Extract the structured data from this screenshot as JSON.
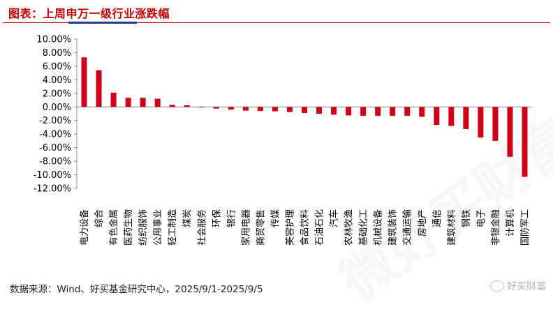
{
  "header": {
    "title": "图表：上周申万一级行业涨跌幅"
  },
  "footer": {
    "source": "数据来源：Wind、好买基金研究中心，2025/9/1-2025/9/5"
  },
  "watermark": {
    "badge": "好买财富",
    "big": "微好买财富客户使用"
  },
  "chart_data": {
    "type": "bar",
    "title": "",
    "xlabel": "",
    "ylabel": "",
    "ylim": [
      -12,
      10
    ],
    "ytick_step": 2,
    "ytick_format": "percent_2dp",
    "grid": false,
    "bar_color": "#D00019",
    "categories": [
      "电力设备",
      "综合",
      "有色金属",
      "医药生物",
      "纺织服饰",
      "公用事业",
      "轻工制造",
      "煤炭",
      "社会服务",
      "环保",
      "银行",
      "家用电器",
      "商贸零售",
      "传媒",
      "美容护理",
      "食品饮料",
      "石油石化",
      "汽车",
      "农林牧渔",
      "基础化工",
      "机械设备",
      "建筑装饰",
      "交通运输",
      "房地产",
      "通信",
      "建筑材料",
      "钢铁",
      "电子",
      "非银金融",
      "计算机",
      "国防军工"
    ],
    "values": [
      7.3,
      5.4,
      2.1,
      1.35,
      1.35,
      1.2,
      0.3,
      0.25,
      -0.05,
      -0.25,
      -0.4,
      -0.55,
      -0.6,
      -0.65,
      -0.75,
      -0.9,
      -1.0,
      -1.15,
      -1.25,
      -1.3,
      -1.3,
      -1.3,
      -1.3,
      -1.45,
      -2.65,
      -2.8,
      -3.25,
      -4.5,
      -5.0,
      -7.35,
      -10.3
    ]
  }
}
